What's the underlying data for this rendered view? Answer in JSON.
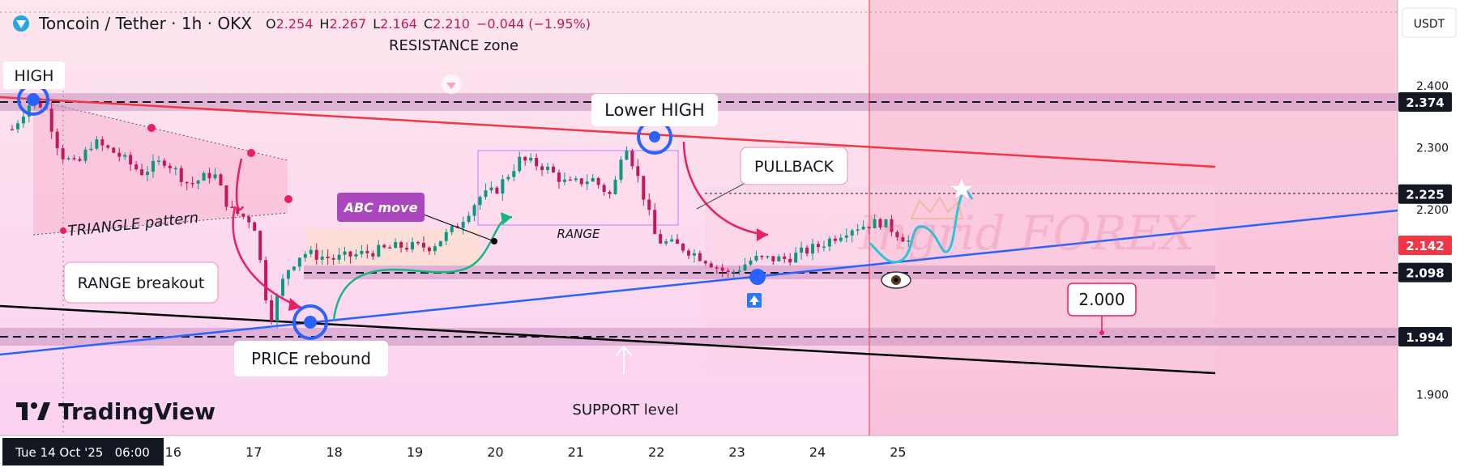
{
  "header": {
    "symbol": "Toncoin / Tether · 1h · OKX",
    "ohlc": {
      "o_label": "O",
      "o": "2.254",
      "h_label": "H",
      "h": "2.267",
      "l_label": "L",
      "l": "2.164",
      "c_label": "C",
      "c": "2.210",
      "change": "−0.044 (−1.95%)"
    }
  },
  "currency_button": "USDT",
  "logo_text": "TradingView",
  "watermark_text": "Ingrid FOREX",
  "date_axis": {
    "first_label": "Tue 14 Oct '25   06:00",
    "labels": [
      "16",
      "17",
      "18",
      "19",
      "20",
      "21",
      "22",
      "23",
      "24",
      "25"
    ]
  },
  "price_axis": {
    "ticks": [
      "2.400",
      "2.300",
      "2.200",
      "1.900"
    ],
    "badges": [
      {
        "value": "2.374",
        "color": "#131722"
      },
      {
        "value": "2.225",
        "color": "#131722"
      },
      {
        "value": "2.142",
        "color": "#f23645"
      },
      {
        "value": "2.098",
        "color": "#131722"
      },
      {
        "value": "1.994",
        "color": "#131722"
      }
    ]
  },
  "annotations": {
    "high": "HIGH",
    "resistance_zone": "RESISTANCE zone",
    "lower_high": "Lower HIGH",
    "pullback": "PULLBACK",
    "triangle_pattern": "TRIANGLE pattern",
    "abc_move": "ABC move",
    "range": "RANGE",
    "range_breakout": "RANGE breakout",
    "price_rebound": "PRICE rebound",
    "support_level": "SUPPORT level",
    "target": "2.000"
  },
  "colors": {
    "bull": "#089981",
    "bear": "#c2185b",
    "resistance_line": "#f23645",
    "trend_line": "#2962ff",
    "accent": "#e91e63"
  },
  "chart_data": {
    "type": "candlestick",
    "title": "Toncoin / Tether · 1h · OKX",
    "x_unit": "date (Oct 2025)",
    "y_unit": "USDT",
    "ylim": [
      1.85,
      2.48
    ],
    "y_ticks": [
      1.9,
      2.2,
      2.3,
      2.4
    ],
    "horizontal_levels": [
      2.374,
      2.225,
      2.098,
      1.994
    ],
    "last_price": 2.142,
    "target": 2.0,
    "key_points": [
      {
        "name": "HIGH",
        "date": "Oct 14",
        "price": 2.374
      },
      {
        "name": "PRICE rebound",
        "date": "Oct 17",
        "price": 2.02
      },
      {
        "name": "Lower HIGH",
        "date": "Oct 21",
        "price": 2.315
      },
      {
        "name": "rebound",
        "date": "Oct 22",
        "price": 2.095
      }
    ],
    "close_path": [
      [
        14.0,
        2.33
      ],
      [
        14.2,
        2.37
      ],
      [
        14.4,
        2.37
      ],
      [
        14.6,
        2.29
      ],
      [
        14.8,
        2.27
      ],
      [
        15.0,
        2.31
      ],
      [
        15.3,
        2.29
      ],
      [
        15.6,
        2.26
      ],
      [
        15.9,
        2.28
      ],
      [
        16.2,
        2.24
      ],
      [
        16.5,
        2.26
      ],
      [
        16.7,
        2.2
      ],
      [
        17.0,
        2.18
      ],
      [
        17.2,
        2.02
      ],
      [
        17.4,
        2.1
      ],
      [
        17.6,
        2.13
      ],
      [
        18.0,
        2.12
      ],
      [
        18.4,
        2.13
      ],
      [
        18.8,
        2.14
      ],
      [
        19.2,
        2.14
      ],
      [
        19.5,
        2.17
      ],
      [
        19.8,
        2.22
      ],
      [
        20.0,
        2.23
      ],
      [
        20.3,
        2.28
      ],
      [
        20.6,
        2.27
      ],
      [
        20.9,
        2.24
      ],
      [
        21.2,
        2.25
      ],
      [
        21.45,
        2.22
      ],
      [
        21.6,
        2.315
      ],
      [
        21.8,
        2.24
      ],
      [
        22.0,
        2.15
      ],
      [
        22.3,
        2.14
      ],
      [
        22.6,
        2.12
      ],
      [
        22.9,
        2.095
      ],
      [
        23.2,
        2.12
      ],
      [
        23.6,
        2.12
      ],
      [
        24.0,
        2.14
      ],
      [
        24.4,
        2.17
      ],
      [
        24.8,
        2.18
      ],
      [
        25.2,
        2.142
      ]
    ]
  }
}
